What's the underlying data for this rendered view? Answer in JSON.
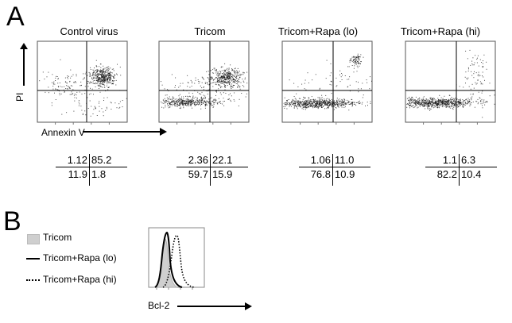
{
  "panelA": {
    "letter": "A",
    "titles": [
      "Control virus",
      "Tricom",
      "Tricom+Rapa (lo)",
      "Tricom+Rapa (hi)"
    ],
    "y_axis_label": "PI",
    "x_axis_label": "Annexin V",
    "quadrants": [
      {
        "ul": "1.12",
        "ur": "85.2",
        "ll": "11.9",
        "lr": "1.8"
      },
      {
        "ul": "2.36",
        "ur": "22.1",
        "ll": "59.7",
        "lr": "15.9"
      },
      {
        "ul": "1.06",
        "ur": "11.0",
        "ll": "76.8",
        "lr": "10.9"
      },
      {
        "ul": "1.1",
        "ur": "6.3",
        "ll": "82.2",
        "lr": "10.4"
      }
    ]
  },
  "panelB": {
    "letter": "B",
    "legend": [
      {
        "label": "Tricom",
        "style": "filled-gray"
      },
      {
        "label": "Tricom+Rapa (lo)",
        "style": "solid"
      },
      {
        "label": "Tricom+Rapa (hi)",
        "style": "dotted"
      }
    ],
    "x_axis_label": "Bcl-2"
  },
  "colors": {
    "fill_gray": "#cfcfcf",
    "ink": "#000000"
  }
}
